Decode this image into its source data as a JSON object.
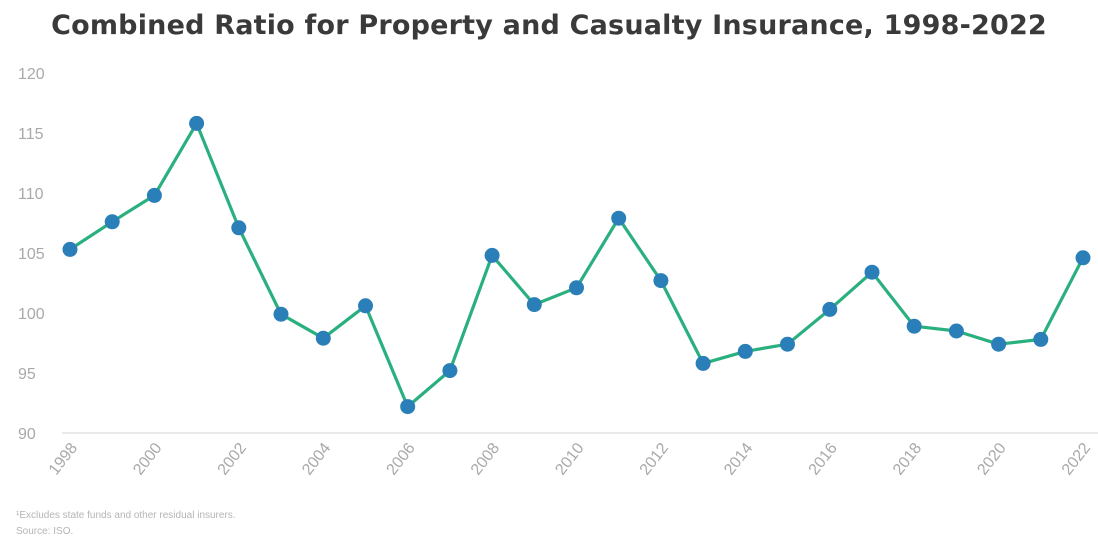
{
  "chart_data": {
    "type": "line",
    "title": "Combined Ratio for Property and Casualty Insurance, 1998-2022",
    "xlabel": "",
    "ylabel": "",
    "ylim": [
      90,
      120
    ],
    "yticks": [
      "90",
      "95",
      "100",
      "105",
      "110",
      "115",
      "120"
    ],
    "xtick_labels": [
      "1998",
      "2000",
      "2002",
      "2004",
      "2006",
      "2008",
      "2010",
      "2012",
      "2014",
      "2016",
      "2018",
      "2020",
      "2022"
    ],
    "grid": false,
    "x": [
      1998,
      1999,
      2000,
      2001,
      2002,
      2003,
      2004,
      2005,
      2006,
      2007,
      2008,
      2009,
      2010,
      2011,
      2012,
      2013,
      2014,
      2015,
      2016,
      2017,
      2018,
      2019,
      2020,
      2021,
      2022
    ],
    "series": [
      {
        "values": [
          105.3,
          107.6,
          109.8,
          115.8,
          107.1,
          99.9,
          97.9,
          100.6,
          92.2,
          95.2,
          104.8,
          100.7,
          102.1,
          107.9,
          102.7,
          95.8,
          96.8,
          97.4,
          100.3,
          103.4,
          98.9,
          98.5,
          97.4,
          97.8,
          104.6
        ]
      }
    ],
    "line_color": "#2ab07f",
    "marker_color": "#2b7fb8",
    "footnotes": [
      "¹Excludes state funds and other residual insurers.",
      "Source: ISO."
    ]
  }
}
